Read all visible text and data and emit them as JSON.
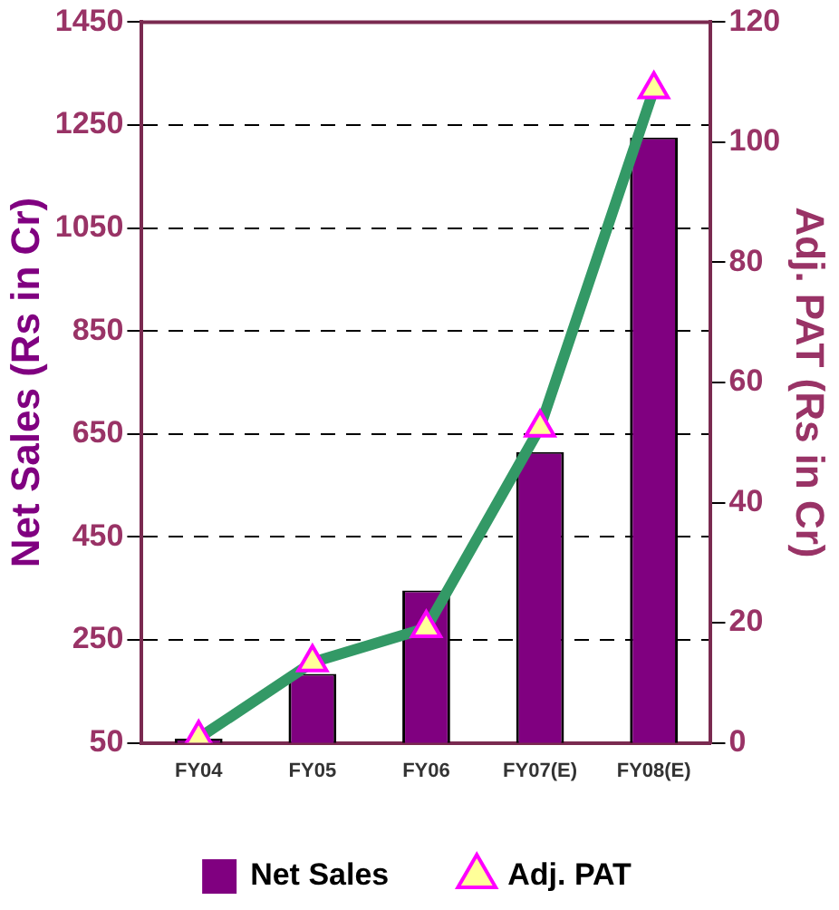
{
  "chart_data": {
    "type": "bar",
    "ylabel": "Net Sales (Rs in Cr)",
    "y2label": "Adj. PAT (Rs in Cr)",
    "categories": [
      "FY04",
      "FY05",
      "FY06",
      "FY07(E)",
      "FY08(E)"
    ],
    "series": [
      {
        "name": "Net Sales",
        "color": "#800080",
        "values": [
          58,
          184,
          346,
          615,
          1226
        ]
      },
      {
        "name": "Adj. PAT",
        "type": "line",
        "axis": "y2",
        "color": "#339966",
        "marker": "triangle",
        "values": [
          0.8,
          13.4,
          19.1,
          52.5,
          108.8
        ]
      }
    ],
    "ylim": [
      50,
      1450
    ],
    "yticks": [
      50,
      250,
      450,
      650,
      850,
      1050,
      1250,
      1450
    ],
    "y2lim": [
      0,
      120
    ],
    "y2ticks": [
      0,
      20,
      40,
      60,
      80,
      100,
      120
    ],
    "grid": "y",
    "legend": "bottom"
  }
}
